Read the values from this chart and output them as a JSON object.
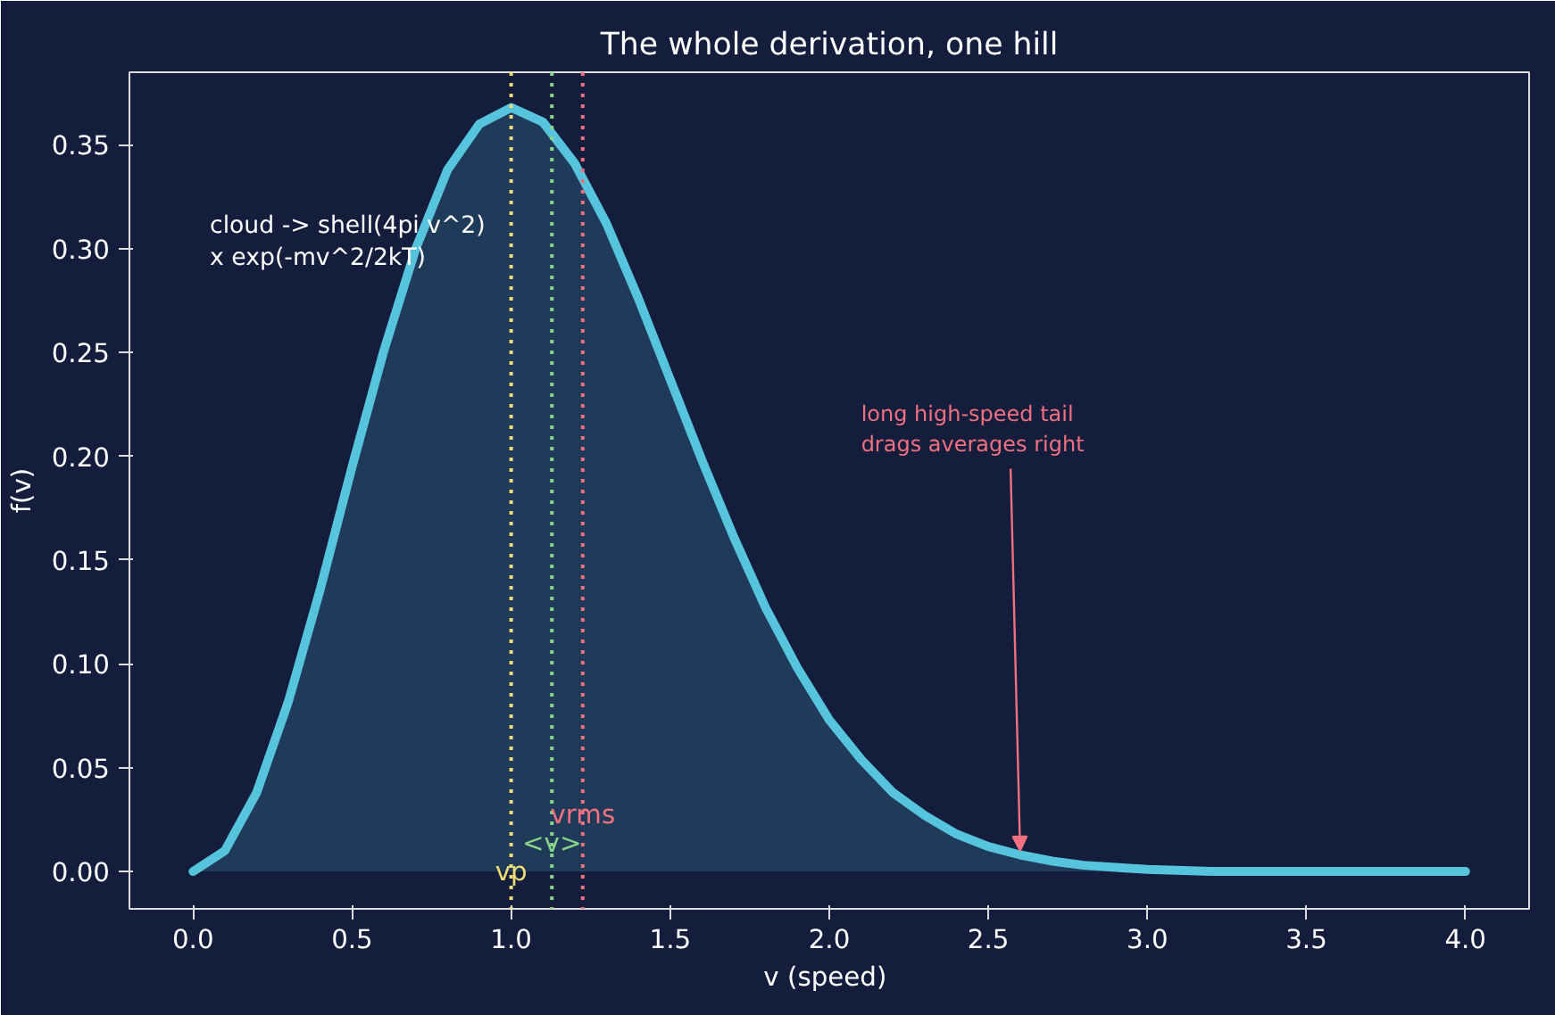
{
  "chart_data": {
    "type": "area",
    "title": "The whole derivation, one hill",
    "xlabel": "v  (speed)",
    "ylabel": "f(v)",
    "x": [
      0,
      0.1,
      0.2,
      0.3,
      0.4,
      0.5,
      0.6,
      0.7,
      0.8,
      0.9,
      1.0,
      1.1,
      1.2,
      1.3,
      1.4,
      1.5,
      1.6,
      1.7,
      1.8,
      1.9,
      2.0,
      2.1,
      2.2,
      2.3,
      2.4,
      2.5,
      2.6,
      2.7,
      2.8,
      2.9,
      3.0,
      3.2,
      3.5,
      4.0
    ],
    "series": [
      {
        "color": "#56c4dc",
        "values": [
          0,
          0.01,
          0.038,
          0.082,
          0.136,
          0.195,
          0.251,
          0.3,
          0.338,
          0.36,
          0.368,
          0.361,
          0.341,
          0.312,
          0.276,
          0.237,
          0.198,
          0.161,
          0.127,
          0.098,
          0.073,
          0.054,
          0.038,
          0.027,
          0.018,
          0.012,
          0.008,
          0.005,
          0.003,
          0.002,
          0.001,
          0.0,
          0.0,
          0.0
        ]
      }
    ],
    "xlim": [
      -0.2,
      4.2
    ],
    "ylim": [
      -0.018,
      0.385
    ],
    "xticks": [
      {
        "value": 0,
        "label": "0.0"
      },
      {
        "value": 0.5,
        "label": "0.5"
      },
      {
        "value": 1,
        "label": "1.0"
      },
      {
        "value": 1.5,
        "label": "1.5"
      },
      {
        "value": 2,
        "label": "2.0"
      },
      {
        "value": 2.5,
        "label": "2.5"
      },
      {
        "value": 3,
        "label": "3.0"
      },
      {
        "value": 3.5,
        "label": "3.5"
      },
      {
        "value": 4,
        "label": "4.0"
      }
    ],
    "yticks": [
      {
        "value": 0,
        "label": "0.00"
      },
      {
        "value": 0.05,
        "label": "0.05"
      },
      {
        "value": 0.1,
        "label": "0.10"
      },
      {
        "value": 0.15,
        "label": "0.15"
      },
      {
        "value": 0.2,
        "label": "0.20"
      },
      {
        "value": 0.25,
        "label": "0.25"
      },
      {
        "value": 0.3,
        "label": "0.30"
      },
      {
        "value": 0.35,
        "label": "0.35"
      }
    ],
    "ref_lines": [
      {
        "axis": "x",
        "value": 1.0,
        "label": "vp",
        "color": "#eedd77",
        "line_style": "dotted"
      },
      {
        "axis": "x",
        "value": 1.128,
        "label": "<v>",
        "color": "#88d488",
        "line_style": "dotted"
      },
      {
        "axis": "x",
        "value": 1.225,
        "label": "vrms",
        "color": "#f07080",
        "line_style": "dotted"
      }
    ],
    "annotations": [
      "cloud -> shell(4pi v^2)\n x  exp(-mv^2/2kT)",
      {
        "text": "long high-speed tail\ndrags averages right",
        "x": 2.6,
        "y": 0.01
      }
    ],
    "grid": false
  }
}
